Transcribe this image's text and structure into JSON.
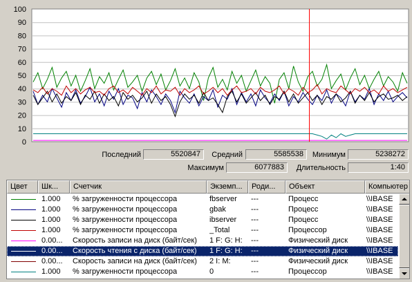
{
  "chart_data": {
    "type": "line",
    "ylim": [
      0,
      100
    ],
    "yticks": [
      "100",
      "90",
      "80",
      "70",
      "60",
      "50",
      "40",
      "30",
      "20",
      "10",
      "0"
    ],
    "grid": true,
    "time_marker_color": "#ff0000",
    "series": [
      {
        "color": "#008000",
        "values": [
          45,
          52,
          40,
          47,
          56,
          41,
          48,
          53,
          42,
          50,
          38,
          46,
          55,
          40,
          49,
          44,
          52,
          39,
          47,
          54,
          41,
          45,
          50,
          38,
          48,
          53,
          43,
          51,
          39,
          46,
          55,
          42,
          48,
          40,
          52,
          45,
          31,
          48,
          56,
          41,
          47,
          39,
          53,
          44,
          50,
          38,
          46,
          54,
          42,
          49,
          44,
          29,
          47,
          52,
          40,
          57,
          45,
          38,
          49,
          53,
          42,
          47,
          58,
          40,
          46,
          51,
          39,
          48,
          55,
          43,
          50,
          40,
          47,
          53,
          42,
          49,
          45,
          38,
          52,
          44
        ]
      },
      {
        "color": "#000080",
        "values": [
          38,
          28,
          35,
          30,
          40,
          33,
          26,
          37,
          31,
          39,
          29,
          34,
          41,
          30,
          36,
          27,
          38,
          32,
          40,
          28,
          35,
          33,
          25,
          37,
          30,
          39,
          34,
          28,
          36,
          31,
          22,
          38,
          33,
          29,
          36,
          27,
          34,
          31,
          39,
          26,
          35,
          32,
          40,
          28,
          37,
          30,
          36,
          27,
          39,
          33,
          29,
          36,
          31,
          38,
          27,
          34,
          30,
          37,
          32,
          28,
          35,
          31,
          39,
          29,
          36,
          33,
          27,
          38,
          30,
          35,
          32,
          40,
          28,
          36,
          31,
          38,
          30,
          34,
          37,
          33
        ]
      },
      {
        "color": "#000000",
        "values": [
          35,
          28,
          33,
          38,
          30,
          36,
          29,
          34,
          31,
          37,
          28,
          35,
          32,
          38,
          29,
          36,
          31,
          34,
          27,
          37,
          32,
          35,
          30,
          33,
          38,
          29,
          36,
          31,
          34,
          28,
          19,
          30,
          36,
          32,
          35,
          29,
          37,
          31,
          33,
          28,
          22,
          34,
          38,
          30,
          36,
          29,
          33,
          37,
          31,
          35,
          28,
          34,
          32,
          38,
          30,
          36,
          29,
          33,
          37,
          31,
          35,
          28,
          34,
          32,
          36,
          30,
          33,
          38,
          29,
          35,
          31,
          37,
          30,
          34,
          36,
          32,
          33,
          35,
          31,
          34
        ]
      },
      {
        "color": "#c00000",
        "values": [
          39,
          37,
          41,
          36,
          40,
          38,
          35,
          42,
          37,
          40,
          36,
          39,
          41,
          37,
          38,
          35,
          40,
          42,
          37,
          39,
          36,
          41,
          38,
          35,
          40,
          37,
          42,
          36,
          39,
          38,
          41,
          35,
          40,
          37,
          39,
          42,
          36,
          38,
          41,
          37,
          40,
          35,
          39,
          42,
          37,
          38,
          40,
          36,
          41,
          38,
          37,
          39,
          42,
          36,
          40,
          38,
          35,
          41,
          37,
          39,
          43,
          36,
          40,
          38,
          37,
          42,
          39,
          36,
          40,
          38,
          41,
          37,
          39,
          36,
          42,
          38,
          40,
          37,
          39,
          41
        ]
      },
      {
        "color": "#008080",
        "values": [
          6,
          6,
          6,
          6,
          6,
          6,
          6,
          6,
          6,
          6,
          6,
          6,
          6,
          6,
          6,
          6,
          6,
          6,
          6,
          6,
          6,
          6,
          6,
          6,
          6,
          6,
          6,
          6,
          6,
          6,
          6,
          6,
          6,
          6,
          6,
          6,
          6,
          6,
          6,
          6,
          6,
          6,
          6,
          6,
          6,
          6,
          6,
          6,
          6,
          6,
          6,
          6,
          6,
          6,
          6,
          6,
          6,
          6,
          6,
          6,
          5,
          4,
          2,
          5,
          3,
          6,
          4,
          5,
          6,
          6,
          6,
          6,
          6,
          6,
          6,
          6,
          6,
          6,
          6,
          6
        ]
      },
      {
        "color": "#ff00ff",
        "values": [
          1,
          1,
          1,
          1,
          1,
          1,
          1,
          1,
          1,
          1,
          1,
          1,
          1,
          1,
          1,
          1,
          1,
          1,
          1,
          1,
          1,
          1,
          1,
          1,
          1,
          1,
          1,
          1,
          1,
          1,
          1,
          1,
          1,
          1,
          1,
          1,
          1,
          1,
          1,
          1,
          1,
          1,
          1,
          1,
          1,
          1,
          1,
          1,
          1,
          1,
          1,
          1,
          1,
          1,
          1,
          1,
          1,
          1,
          1,
          1,
          1,
          1,
          1,
          1,
          1,
          1,
          1,
          1,
          1,
          1,
          1,
          1,
          1,
          1,
          1,
          1,
          1,
          1,
          1,
          1
        ]
      }
    ]
  },
  "stats": {
    "last_label": "Последний",
    "last_value": "5520847",
    "avg_label": "Средний",
    "avg_value": "5585538",
    "min_label": "Минимум",
    "min_value": "5238272",
    "max_label": "Максимум",
    "max_value": "6077883",
    "duration_label": "Длительность",
    "duration_value": "1:40"
  },
  "table": {
    "columns": [
      "Цвет",
      "Шк...",
      "Счетчик",
      "Экземп...",
      "Роди...",
      "Объект",
      "Компьютер"
    ],
    "rows": [
      {
        "color": "#008000",
        "scale": "1.000",
        "counter": "% загруженности процессора",
        "instance": "fbserver",
        "parent": "---",
        "object": "Процесс",
        "computer": "\\\\IBASE",
        "selected": false
      },
      {
        "color": "#000080",
        "scale": "1.000",
        "counter": "% загруженности процессора",
        "instance": "gbak",
        "parent": "---",
        "object": "Процесс",
        "computer": "\\\\IBASE",
        "selected": false
      },
      {
        "color": "#000000",
        "scale": "1.000",
        "counter": "% загруженности процессора",
        "instance": "ibserver",
        "parent": "---",
        "object": "Процесс",
        "computer": "\\\\IBASE",
        "selected": false
      },
      {
        "color": "#c00000",
        "scale": "1.000",
        "counter": "% загруженности процессора",
        "instance": "_Total",
        "parent": "---",
        "object": "Процессор",
        "computer": "\\\\IBASE",
        "selected": false
      },
      {
        "color": "#ff00ff",
        "scale": "0.00...",
        "counter": "Скорость записи на диск (байт/сек)",
        "instance": "1 F: G: H:",
        "parent": "---",
        "object": "Физический диск",
        "computer": "\\\\IBASE",
        "selected": false
      },
      {
        "color": "#000000",
        "scale": "0.00...",
        "counter": "Скорость чтения с диска (байт/сек)",
        "instance": "1 F: G: H:",
        "parent": "---",
        "object": "Физический диск",
        "computer": "\\\\IBASE",
        "selected": true
      },
      {
        "color": "#800000",
        "scale": "0.00...",
        "counter": "Скорость записи на диск (байт/сек)",
        "instance": "2 I: M:",
        "parent": "---",
        "object": "Физический диск",
        "computer": "\\\\IBASE",
        "selected": false
      },
      {
        "color": "#008080",
        "scale": "1.000",
        "counter": "% загруженности процессора",
        "instance": "0",
        "parent": "---",
        "object": "Процессор",
        "computer": "\\\\IBASE",
        "selected": false
      }
    ]
  }
}
